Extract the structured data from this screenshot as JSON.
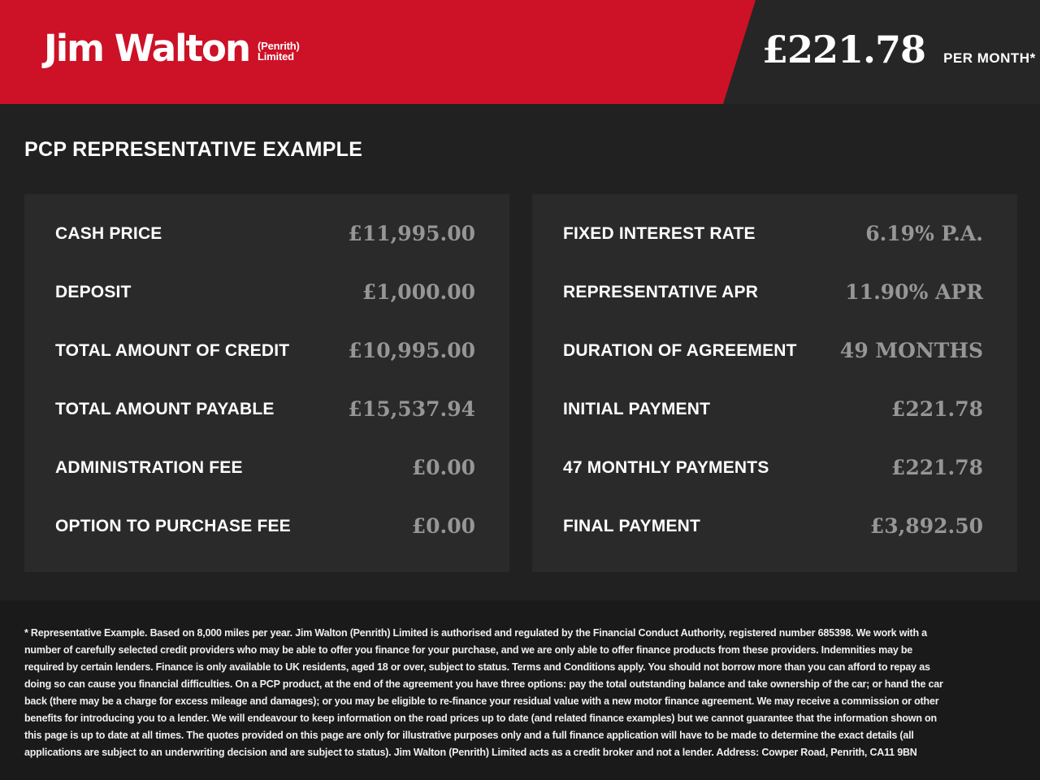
{
  "header": {
    "brand": "Jim Walton",
    "brand_suffix_line1": "(Penrith)",
    "brand_suffix_line2": "Limited",
    "monthly_price": "£221.78",
    "monthly_price_label": "PER MONTH*"
  },
  "page_title": "PCP REPRESENTATIVE EXAMPLE",
  "finance": {
    "left": [
      {
        "label": "CASH PRICE",
        "value": "£11,995.00"
      },
      {
        "label": "DEPOSIT",
        "value": "£1,000.00"
      },
      {
        "label": "TOTAL AMOUNT OF CREDIT",
        "value": "£10,995.00"
      },
      {
        "label": "TOTAL AMOUNT PAYABLE",
        "value": "£15,537.94"
      },
      {
        "label": "ADMINISTRATION FEE",
        "value": "£0.00"
      },
      {
        "label": "OPTION TO PURCHASE FEE",
        "value": "£0.00"
      }
    ],
    "right": [
      {
        "label": "FIXED INTEREST RATE",
        "value": "6.19% P.A."
      },
      {
        "label": "REPRESENTATIVE APR",
        "value": "11.90% APR"
      },
      {
        "label": "DURATION OF AGREEMENT",
        "value": "49 MONTHS"
      },
      {
        "label": "INITIAL PAYMENT",
        "value": "£221.78"
      },
      {
        "label": "47 MONTHLY PAYMENTS",
        "value": "£221.78"
      },
      {
        "label": "FINAL PAYMENT",
        "value": "£3,892.50"
      }
    ]
  },
  "disclaimer": "* Representative Example. Based on 8,000 miles per year. Jim Walton (Penrith) Limited is authorised and regulated by the Financial Conduct Authority, registered number 685398. We work with a number of carefully selected credit providers who may be able to offer you finance for your purchase, and we are only able to offer finance products from these providers. Indemnities may be required by certain lenders. Finance is only available to UK residents, aged 18 or over, subject to status. Terms and Conditions apply. You should not borrow more than you can afford to repay as doing so can cause you financial difficulties. On a PCP product, at the end of the agreement you have three options: pay the total outstanding balance and take ownership of the car; or hand the car back (there may be a charge for excess mileage and damages); or you may be eligible to re-finance your residual value with a new motor finance agreement. We may receive a commission or other benefits for introducing you to a lender. We will endeavour to keep information on the road prices up to date (and related finance examples) but we cannot guarantee that the information shown on this page is up to date at all times. The quotes provided on this page are only for illustrative purposes only and a full finance application will have to be made to determine the exact details (all applications are subject to an underwriting decision and are subject to status). Jim Walton (Penrith) Limited acts as a credit broker and not a lender. Address: Cowper Road, Penrith, CA11 9BN",
  "colors": {
    "brand_red": "#cd1126",
    "header_dark": "#262626",
    "page_bg": "#212121",
    "panel_bg": "#2a2a2a",
    "footer_bg": "#1a1a1a",
    "value_gray": "#969696",
    "text_white": "#ffffff"
  }
}
